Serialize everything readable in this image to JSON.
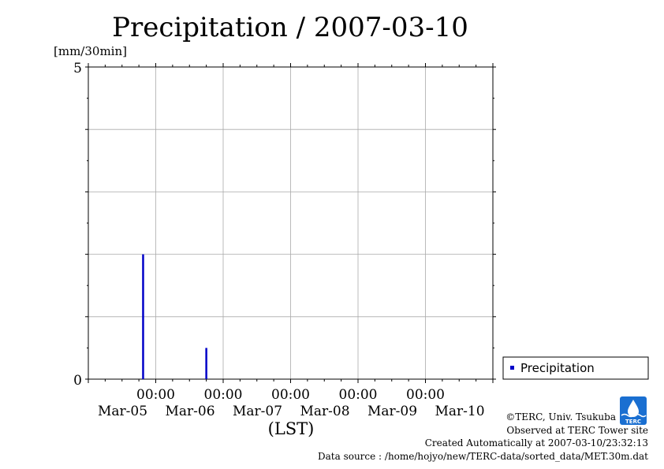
{
  "chart_data": {
    "type": "bar",
    "title": "Precipitation / 2007-03-10",
    "ylabel": "[mm/30min]",
    "xlabel": "(LST)",
    "ylim": [
      0,
      5
    ],
    "ytick_labels": [
      "0",
      "5"
    ],
    "x_range_hours": [
      -18,
      126
    ],
    "x_ticks": [
      {
        "hour": 6,
        "time": "00:00",
        "date": "Mar-05"
      },
      {
        "hour": 30,
        "time": "00:00",
        "date": "Mar-06"
      },
      {
        "hour": 54,
        "time": "00:00",
        "date": "Mar-07"
      },
      {
        "hour": 78,
        "time": "00:00",
        "date": "Mar-08"
      },
      {
        "hour": 102,
        "time": "00:00",
        "date": "Mar-09"
      },
      {
        "hour": 126,
        "time": "",
        "date": "Mar-10"
      }
    ],
    "series": [
      {
        "name": "Precipitation",
        "color": "#0000c8",
        "points": [
          {
            "hour": 1.5,
            "value": 2.0
          },
          {
            "hour": 24.0,
            "value": 0.5
          }
        ]
      }
    ],
    "grid": true,
    "legend_position": "bottom-right"
  },
  "credits": {
    "copyright": "©TERC, Univ. Tsukuba",
    "observed": "Observed at TERC Tower site",
    "created": "Created Automatically at 2007-03-10/23:32:13",
    "source": "Data source : /home/hojyo/new/TERC-data/sorted_data/MET.30m.dat",
    "logo_text": "TERC"
  }
}
